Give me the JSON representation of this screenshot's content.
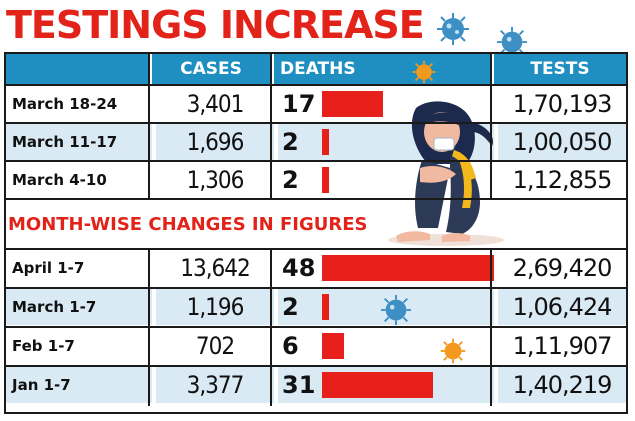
{
  "title": "TESTINGS INCREASE",
  "columns": {
    "label": "",
    "cases": "CASES",
    "deaths": "DEATHS",
    "tests": "TESTS"
  },
  "section_heading": "MONTH-WISE CHANGES IN FIGURES",
  "weekly_rows": [
    {
      "label": "March 18-24",
      "cases": "3,401",
      "deaths": "17",
      "tests": "1,70,193"
    },
    {
      "label": "March 11-17",
      "cases": "1,696",
      "deaths": "2",
      "tests": "1,00,050"
    },
    {
      "label": "March 4-10",
      "cases": "1,306",
      "deaths": "2",
      "tests": "1,12,855"
    }
  ],
  "monthly_rows": [
    {
      "label": "April 1-7",
      "cases": "13,642",
      "deaths": "48",
      "tests": "2,69,420"
    },
    {
      "label": "March 1-7",
      "cases": "1,196",
      "deaths": "2",
      "tests": "1,06,424"
    },
    {
      "label": "Feb 1-7",
      "cases": "702",
      "deaths": "6",
      "tests": "1,11,907"
    },
    {
      "label": "Jan 1-7",
      "cases": "3,377",
      "deaths": "31",
      "tests": "1,40,219"
    }
  ],
  "colors": {
    "title": "#e2231a",
    "header_bg": "#1f8fc2",
    "bar": "#e8201c",
    "row_shade": "#daeaf5"
  },
  "icons": [
    "virus-icon",
    "sitting-woman-illustration"
  ],
  "chart_data": {
    "type": "table",
    "title": "TESTINGS INCREASE",
    "columns": [
      "CASES",
      "DEATHS",
      "TESTS"
    ],
    "groups": [
      {
        "name": "",
        "rows": [
          "March 18-24",
          "March 11-17",
          "March 4-10"
        ],
        "cases": [
          3401,
          1696,
          1306
        ],
        "deaths": [
          17,
          2,
          2
        ],
        "tests": [
          170193,
          100050,
          112855
        ]
      },
      {
        "name": "MONTH-WISE CHANGES IN FIGURES",
        "rows": [
          "April 1-7",
          "March 1-7",
          "Feb 1-7",
          "Jan 1-7"
        ],
        "cases": [
          13642,
          1196,
          702,
          3377
        ],
        "deaths": [
          48,
          2,
          6,
          31
        ],
        "tests": [
          269420,
          106424,
          111907,
          140219
        ]
      }
    ],
    "deaths_bar_max": 48
  }
}
